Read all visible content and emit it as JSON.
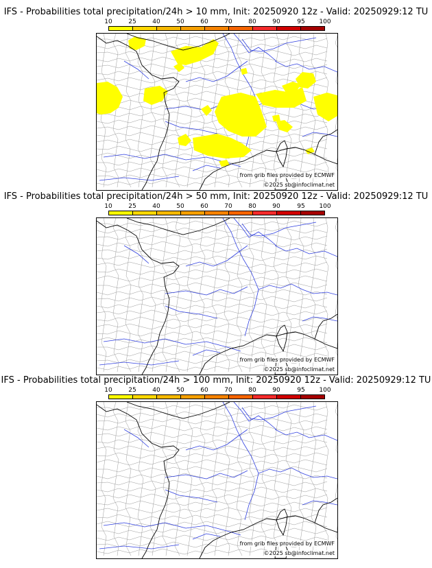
{
  "colors": {
    "legend": [
      "#ffff00",
      "#ffd700",
      "#f5b800",
      "#f59f00",
      "#f58200",
      "#f56400",
      "#f42b2b",
      "#d00000",
      "#a50000",
      "#7a0000",
      "#550000"
    ],
    "precip": "#ffff00",
    "river": "#2f3fe0",
    "border": "#9a9a9a",
    "coast": "#000000"
  },
  "legend_ticks": [
    "10",
    "25",
    "40",
    "50",
    "60",
    "70",
    "80",
    "90",
    "95",
    "100"
  ],
  "panels": [
    {
      "title": "IFS - Probabilities total precipitation/24h > 10 mm, Init: 20250920 12z - Valid: 20250929:12 TU",
      "credit_line1": "from grib files provided by ECMWF",
      "credit_line2": "©2025 sb@infoclimat.net",
      "has_precip": true
    },
    {
      "title": "IFS - Probabilities total precipitation/24h > 50 mm, Init: 20250920 12z - Valid: 20250929:12 TU",
      "credit_line1": "from grib files provided by ECMWF",
      "credit_line2": "©2025 sb@infoclimat.net",
      "has_precip": false
    },
    {
      "title": "IFS - Probabilities total precipitation/24h > 100 mm, Init: 20250920 12z - Valid: 20250929:12 TU",
      "credit_line1": "from grib files provided by ECMWF",
      "credit_line2": "©2025 sb@infoclimat.net",
      "has_precip": false
    }
  ]
}
